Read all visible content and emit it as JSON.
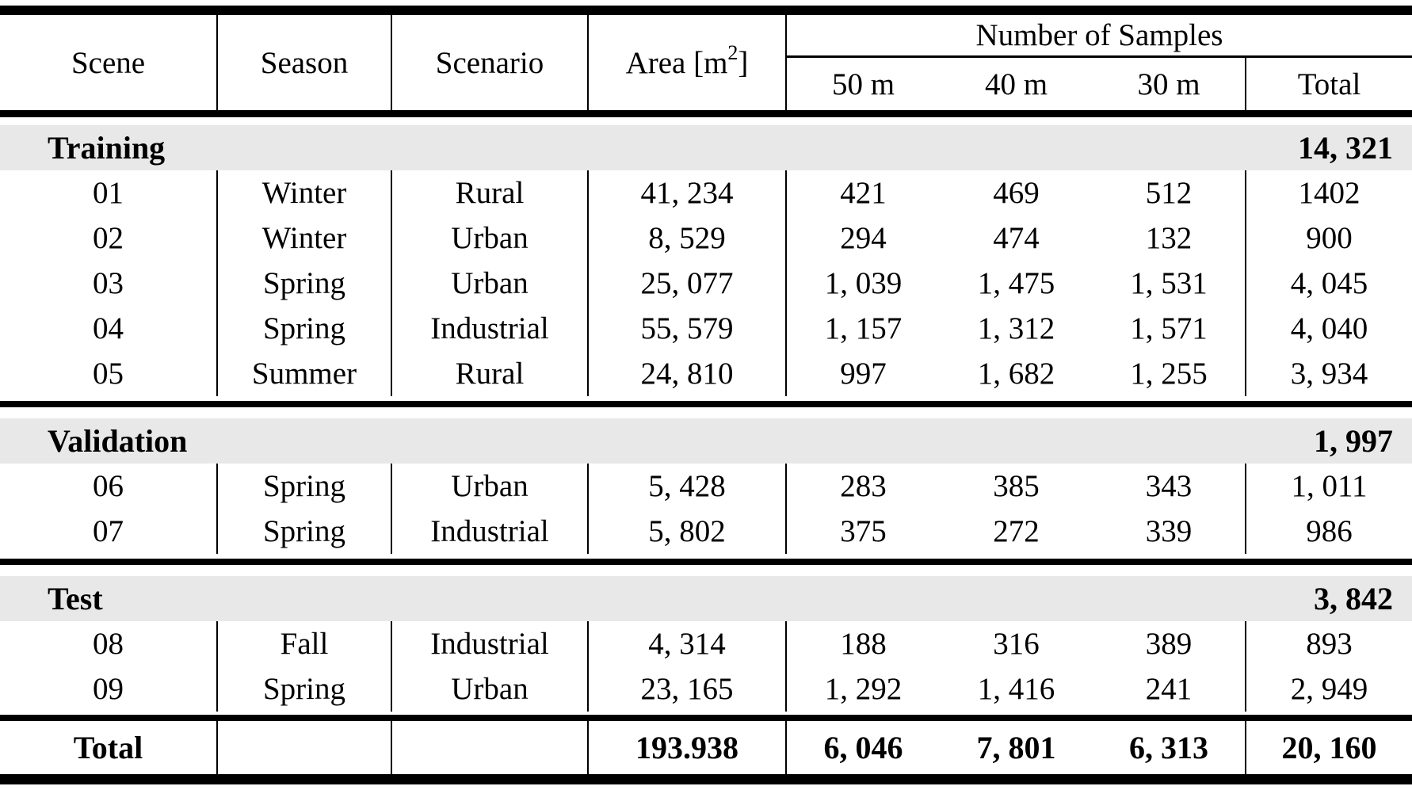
{
  "colors": {
    "band_gray": "#e8e8e8",
    "rule_black": "#000000",
    "text": "#000000"
  },
  "table": {
    "header": {
      "scene": "Scene",
      "season": "Season",
      "scenario": "Scenario",
      "area_prefix": "Area [m",
      "area_sup": "2",
      "area_suffix": "]",
      "samples_group": "Number of Samples",
      "sub_50": "50 m",
      "sub_40": "40 m",
      "sub_30": "30 m",
      "sub_total": "Total"
    },
    "sections": [
      {
        "label": "Training",
        "total": "14, 321",
        "rows": [
          {
            "scene": "01",
            "season": "Winter",
            "scenario": "Rural",
            "area": "41, 234",
            "n50": "421",
            "n40": "469",
            "n30": "512",
            "total": "1402"
          },
          {
            "scene": "02",
            "season": "Winter",
            "scenario": "Urban",
            "area": "8, 529",
            "n50": "294",
            "n40": "474",
            "n30": "132",
            "total": "900"
          },
          {
            "scene": "03",
            "season": "Spring",
            "scenario": "Urban",
            "area": "25, 077",
            "n50": "1, 039",
            "n40": "1, 475",
            "n30": "1, 531",
            "total": "4, 045"
          },
          {
            "scene": "04",
            "season": "Spring",
            "scenario": "Industrial",
            "area": "55, 579",
            "n50": "1, 157",
            "n40": "1, 312",
            "n30": "1, 571",
            "total": "4, 040"
          },
          {
            "scene": "05",
            "season": "Summer",
            "scenario": "Rural",
            "area": "24, 810",
            "n50": "997",
            "n40": "1, 682",
            "n30": "1, 255",
            "total": "3, 934"
          }
        ]
      },
      {
        "label": "Validation",
        "total": "1, 997",
        "rows": [
          {
            "scene": "06",
            "season": "Spring",
            "scenario": "Urban",
            "area": "5, 428",
            "n50": "283",
            "n40": "385",
            "n30": "343",
            "total": "1, 011"
          },
          {
            "scene": "07",
            "season": "Spring",
            "scenario": "Industrial",
            "area": "5, 802",
            "n50": "375",
            "n40": "272",
            "n30": "339",
            "total": "986"
          }
        ]
      },
      {
        "label": "Test",
        "total": "3, 842",
        "rows": [
          {
            "scene": "08",
            "season": "Fall",
            "scenario": "Industrial",
            "area": "4, 314",
            "n50": "188",
            "n40": "316",
            "n30": "389",
            "total": "893"
          },
          {
            "scene": "09",
            "season": "Spring",
            "scenario": "Urban",
            "area": "23, 165",
            "n50": "1, 292",
            "n40": "1, 416",
            "n30": "241",
            "total": "2, 949"
          }
        ]
      }
    ],
    "footer": {
      "label": "Total",
      "season": "",
      "scenario": "",
      "area": "193.938",
      "n50": "6, 046",
      "n40": "7, 801",
      "n30": "6, 313",
      "total": "20, 160"
    }
  }
}
